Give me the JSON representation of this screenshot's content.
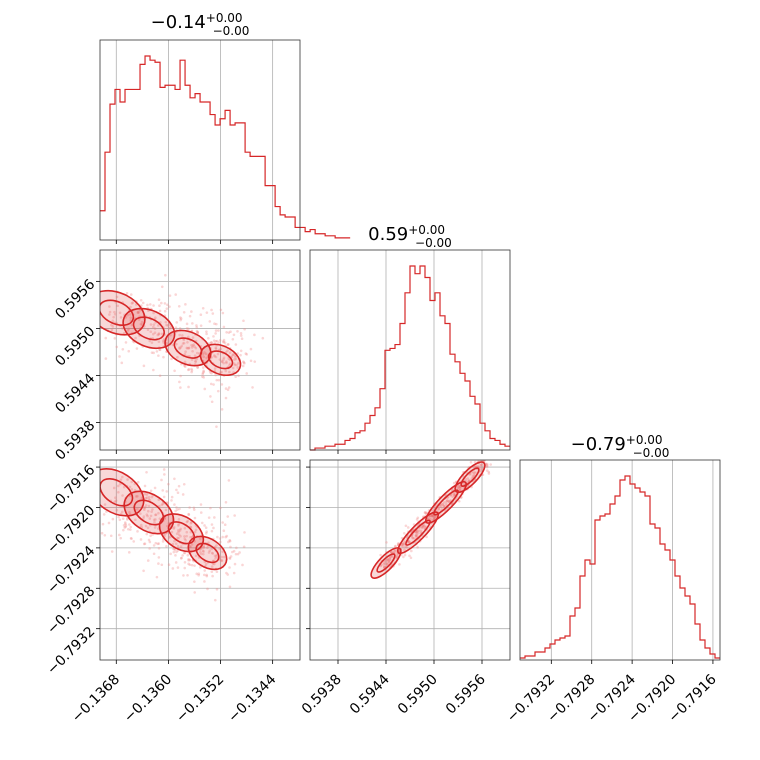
{
  "colors": {
    "series": "#d62728",
    "scatter": "#f08a8a",
    "grid": "#b0b0b0"
  },
  "chart_data": [
    {
      "type": "histogram",
      "panel": "param-1 marginal",
      "title_main": "−0.14",
      "title_plus": "+0.00",
      "title_minus": "−0.00",
      "x_range": [
        -0.13705,
        -0.13398
      ],
      "x_ticks": [
        -0.1368,
        -0.136,
        -0.1352,
        -0.1344
      ],
      "x_tick_labels": [
        "−0.1368",
        "−0.1360",
        "−0.1352",
        "−0.1344"
      ],
      "bin_start": -0.13705,
      "bin_width": 7.68e-05,
      "counts": [
        0.14,
        0.42,
        0.65,
        0.72,
        0.66,
        0.72,
        0.72,
        0.72,
        0.84,
        0.88,
        0.86,
        0.85,
        0.73,
        0.74,
        0.74,
        0.72,
        0.86,
        0.74,
        0.68,
        0.7,
        0.66,
        0.66,
        0.6,
        0.55,
        0.58,
        0.62,
        0.55,
        0.56,
        0.56,
        0.42,
        0.4,
        0.4,
        0.4,
        0.26,
        0.26,
        0.16,
        0.12,
        0.11,
        0.11,
        0.06,
        0.06,
        0.04,
        0.05,
        0.03,
        0.03,
        0.02,
        0.02,
        0.01,
        0.01,
        0.01
      ],
      "grid": true
    },
    {
      "type": "histogram",
      "panel": "param-2 marginal",
      "title_main": "0.59",
      "title_plus": "+0.00",
      "title_minus": "−0.00",
      "x_range": [
        0.59345,
        0.59595
      ],
      "x_ticks": [
        0.5938,
        0.5944,
        0.595,
        0.5956
      ],
      "x_tick_labels": [
        "0.5938",
        "0.5944",
        "0.5950",
        "0.5956"
      ],
      "bin_start": 0.59345,
      "bin_width": 6.25e-05,
      "counts": [
        0.0,
        0.01,
        0.01,
        0.02,
        0.02,
        0.03,
        0.03,
        0.05,
        0.06,
        0.09,
        0.1,
        0.14,
        0.18,
        0.22,
        0.32,
        0.52,
        0.53,
        0.55,
        0.66,
        0.82,
        0.96,
        0.92,
        0.96,
        0.9,
        0.78,
        0.82,
        0.7,
        0.66,
        0.5,
        0.46,
        0.4,
        0.36,
        0.28,
        0.24,
        0.14,
        0.1,
        0.06,
        0.05,
        0.03,
        0.02
      ],
      "grid": true
    },
    {
      "type": "histogram",
      "panel": "param-3 marginal",
      "title_main": "−0.79",
      "title_plus": "+0.00",
      "title_minus": "−0.00",
      "x_range": [
        -0.79351,
        -0.79153
      ],
      "x_ticks": [
        -0.7932,
        -0.7928,
        -0.7924,
        -0.792,
        -0.7916
      ],
      "x_tick_labels": [
        "−0.7932",
        "−0.7928",
        "−0.7924",
        "−0.7920",
        "−0.7916"
      ],
      "bin_start": -0.79351,
      "bin_width": 4.95e-05,
      "counts": [
        0.01,
        0.02,
        0.02,
        0.04,
        0.04,
        0.06,
        0.08,
        0.1,
        0.11,
        0.12,
        0.22,
        0.26,
        0.42,
        0.5,
        0.48,
        0.7,
        0.72,
        0.73,
        0.78,
        0.82,
        0.9,
        0.92,
        0.88,
        0.86,
        0.84,
        0.82,
        0.68,
        0.66,
        0.58,
        0.55,
        0.5,
        0.42,
        0.36,
        0.32,
        0.28,
        0.18,
        0.1,
        0.06,
        0.03,
        0.01
      ],
      "grid": true
    },
    {
      "type": "scatter",
      "panel": "param-1 vs param-2",
      "x_range": [
        -0.13705,
        -0.13398
      ],
      "y_range": [
        0.59345,
        0.596
      ],
      "x_ticks": [
        -0.1368,
        -0.136,
        -0.1352,
        -0.1344
      ],
      "y_ticks": [
        0.5938,
        0.5944,
        0.595,
        0.5956
      ],
      "y_tick_labels": [
        "0.5938",
        "0.5944",
        "0.5950",
        "0.5956"
      ],
      "contour_centers": [
        [
          -0.1368,
          0.5952
        ],
        [
          -0.1363,
          0.595
        ],
        [
          -0.1357,
          0.59475
        ],
        [
          -0.1352,
          0.5946
        ]
      ],
      "grid": true
    },
    {
      "type": "scatter",
      "panel": "param-1 vs param-3",
      "x_range": [
        -0.13705,
        -0.13398
      ],
      "y_range": [
        -0.79351,
        -0.79153
      ],
      "x_ticks": [
        -0.1368,
        -0.136,
        -0.1352,
        -0.1344
      ],
      "x_tick_labels": [
        "−0.1368",
        "−0.1360",
        "−0.1352",
        "−0.1344"
      ],
      "y_ticks": [
        -0.7932,
        -0.7928,
        -0.7924,
        -0.792,
        -0.7916
      ],
      "y_tick_labels": [
        "−0.7932",
        "−0.7928",
        "−0.7924",
        "−0.7920",
        "−0.7916"
      ],
      "contour_centers": [
        [
          -0.1368,
          -0.79185
        ],
        [
          -0.1363,
          -0.79205
        ],
        [
          -0.1358,
          -0.79225
        ],
        [
          -0.1354,
          -0.79245
        ]
      ],
      "grid": true
    },
    {
      "type": "scatter",
      "panel": "param-2 vs param-3",
      "x_range": [
        0.59345,
        0.59595
      ],
      "y_range": [
        -0.79351,
        -0.79153
      ],
      "x_ticks": [
        0.5938,
        0.5944,
        0.595,
        0.5956
      ],
      "x_tick_labels": [
        "0.5938",
        "0.5944",
        "0.5950",
        "0.5956"
      ],
      "y_ticks": [
        -0.7932,
        -0.7928,
        -0.7924,
        -0.792,
        -0.7916
      ],
      "contour_centers": [
        [
          0.5944,
          -0.79255
        ],
        [
          0.5948,
          -0.79225
        ],
        [
          0.59515,
          -0.79195
        ],
        [
          0.59545,
          -0.7917
        ]
      ],
      "grid": true
    }
  ]
}
